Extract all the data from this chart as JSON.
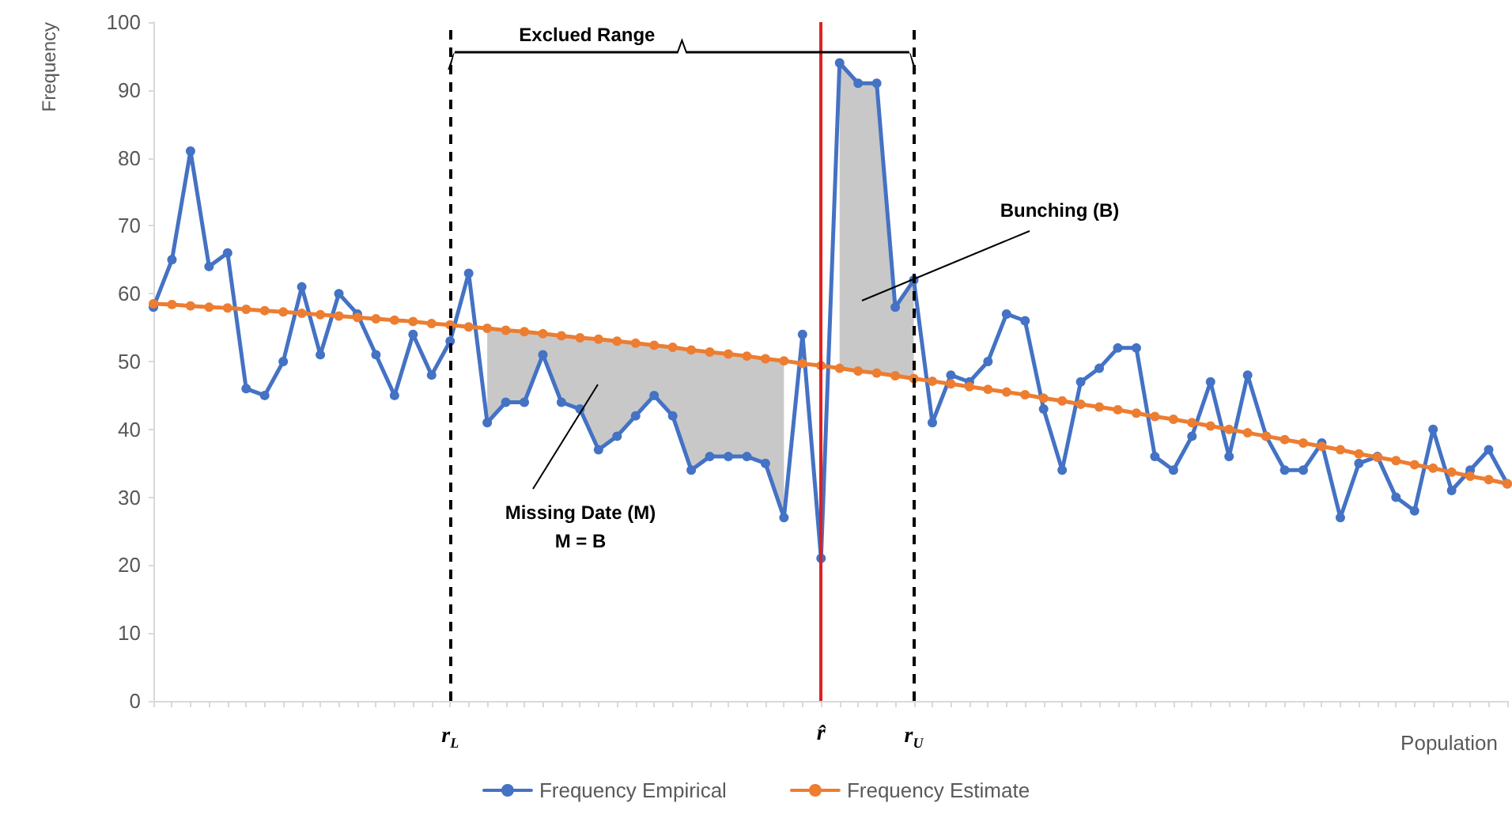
{
  "chart_data": {
    "type": "line",
    "xlabel": "Population",
    "ylabel": "Frequency",
    "categories": [
      null,
      null,
      null,
      null,
      null,
      null,
      null,
      null,
      null,
      null,
      null,
      null,
      null,
      null,
      null,
      null,
      "r$_{L}$",
      null,
      null,
      null,
      null,
      null,
      null,
      null,
      null,
      null,
      null,
      null,
      null,
      null,
      null,
      null,
      null,
      null,
      null,
      null,
      "r̂",
      null,
      null,
      null,
      null,
      "r$_{U}$",
      null,
      null,
      null,
      null,
      null,
      null,
      null,
      null,
      null,
      null,
      null,
      null,
      null,
      null,
      null,
      null,
      null,
      null,
      null,
      null,
      null,
      null,
      null,
      null,
      null,
      null,
      null,
      null,
      null,
      null,
      null,
      null
    ],
    "series": [
      {
        "name": "Frequency Empirical",
        "color": "#4472c4",
        "values": [
          58,
          65,
          81,
          64,
          66,
          46,
          45,
          50,
          61,
          51,
          60,
          57,
          51,
          45,
          54,
          48,
          53,
          63,
          41,
          44,
          44,
          51,
          44,
          43,
          37,
          39,
          42,
          45,
          42,
          34,
          36,
          36,
          36,
          35,
          27,
          54,
          21,
          94,
          91,
          91,
          58,
          62,
          41,
          48,
          47,
          50,
          57,
          56,
          43,
          34,
          47,
          49,
          52,
          52,
          36,
          34,
          39,
          47,
          36,
          48,
          39,
          34,
          34,
          38,
          27,
          35,
          36,
          30,
          28,
          40,
          31,
          34,
          37,
          32
        ],
        "lower": [
          null,
          null,
          null,
          null,
          null,
          null,
          null,
          null,
          null,
          null,
          null,
          null,
          null,
          null,
          null,
          null,
          null,
          null,
          41,
          44,
          44,
          51,
          44,
          43,
          37,
          39,
          42,
          45,
          42,
          34,
          36,
          36,
          36,
          35,
          27,
          null,
          null,
          49.0,
          48.6,
          48.3,
          47.9,
          47.5,
          null,
          null,
          null,
          null,
          null,
          null,
          null,
          null,
          null,
          null,
          null,
          null,
          null,
          null,
          null,
          null,
          null,
          null,
          null,
          null,
          null,
          null,
          null,
          null,
          null,
          null,
          null,
          null,
          null,
          null,
          null,
          null
        ],
        "upper": [
          null,
          null,
          null,
          null,
          null,
          null,
          null,
          null,
          null,
          null,
          null,
          null,
          null,
          null,
          null,
          null,
          null,
          null,
          54.9,
          54.6,
          54.4,
          54.1,
          53.8,
          53.5,
          53.3,
          53.0,
          52.7,
          52.4,
          52.1,
          51.7,
          51.4,
          51.1,
          50.8,
          50.4,
          50.1,
          null,
          null,
          94,
          91,
          91,
          58,
          62,
          null,
          null,
          null,
          null,
          null,
          null,
          null,
          null,
          null,
          null,
          null,
          null,
          null,
          null,
          null,
          null,
          null,
          null,
          null,
          null,
          null,
          null,
          null,
          null,
          null,
          null,
          null,
          null,
          null,
          null,
          null,
          null
        ]
      },
      {
        "name": "Frequency Estimate",
        "color": "#ed7d31",
        "values": [
          58.5,
          58.4,
          58.2,
          58.0,
          57.9,
          57.7,
          57.5,
          57.3,
          57.1,
          56.9,
          56.7,
          56.5,
          56.3,
          56.1,
          55.9,
          55.6,
          55.4,
          55.1,
          54.9,
          54.6,
          54.4,
          54.1,
          53.8,
          53.5,
          53.3,
          53.0,
          52.7,
          52.4,
          52.1,
          51.7,
          51.4,
          51.1,
          50.8,
          50.4,
          50.1,
          49.7,
          49.4,
          49.0,
          48.6,
          48.3,
          47.9,
          47.5,
          47.1,
          46.7,
          46.3,
          45.9,
          45.5,
          45.1,
          44.6,
          44.2,
          43.7,
          43.3,
          42.9,
          42.4,
          41.9,
          41.5,
          41.0,
          40.5,
          40.0,
          39.5,
          39.0,
          38.5,
          38.0,
          37.5,
          37.0,
          36.4,
          35.9,
          35.4,
          34.8,
          34.3,
          33.7,
          33.1,
          32.6,
          32.0
        ]
      }
    ],
    "ylim": [
      0,
      100
    ],
    "yticks": [
      0,
      10,
      20,
      30,
      40,
      50,
      60,
      70,
      80,
      90,
      100
    ],
    "grid": false,
    "legend": "bottom",
    "marker": "circle",
    "line_style": "solid",
    "ref_lines": [
      {
        "axis": "x",
        "value": "r$_{L}$",
        "color": "#000000",
        "line_style": "dashed"
      },
      {
        "axis": "x",
        "value": "r̂",
        "color": "#e02020",
        "line_style": "solid"
      },
      {
        "axis": "x",
        "value": "r$_{U}$",
        "color": "#000000",
        "line_style": "dashed"
      }
    ],
    "annotations": [
      "Exclued Range",
      "Bunching (B)",
      "Missing Date (M)",
      "M = B"
    ]
  }
}
